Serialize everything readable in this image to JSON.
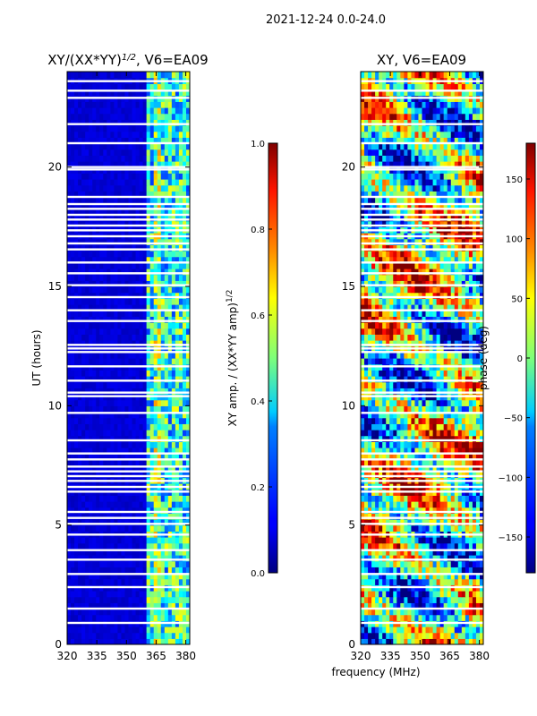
{
  "suptitle": "2021-12-24 0.0-24.0",
  "xlabel_shared": "frequency (MHz)",
  "colors": {
    "background_fill": "#00007f",
    "gap_color": "#ffffff"
  },
  "chart_data": [
    {
      "type": "heatmap",
      "title_main": "XY/(XX*YY)",
      "title_sup": "1/2",
      "title_tail": ", V6=EA09",
      "xlabel": "",
      "ylabel": "UT (hours)",
      "xlim": [
        320,
        382
      ],
      "ylim": [
        0,
        24
      ],
      "xticks": [
        320,
        335,
        350,
        365,
        380
      ],
      "yticks": [
        0,
        5,
        10,
        15,
        20
      ],
      "colormap": "jet",
      "gap_hours": [
        0.9,
        1.5,
        2.4,
        2.95,
        3.55,
        3.95,
        4.6,
        5.05,
        5.3,
        5.55,
        6.4,
        6.6,
        6.85,
        7.05,
        7.25,
        7.45,
        7.75,
        8.0,
        8.55,
        9.7,
        10.4,
        10.55,
        11.05,
        11.65,
        12.25,
        12.4,
        12.55,
        13.55,
        14.0,
        14.55,
        15.05,
        15.55,
        16.0,
        16.55,
        16.8,
        17.1,
        17.35,
        17.55,
        17.8,
        18.0,
        18.25,
        18.45,
        18.75,
        19.9,
        20.0,
        21.0,
        21.8,
        22.9,
        23.2,
        23.6
      ]
    },
    {
      "type": "heatmap",
      "title_main": "XY, V6=EA09",
      "xlabel": "frequency (MHz)",
      "ylabel": "",
      "xlim": [
        320,
        382
      ],
      "ylim": [
        0,
        24
      ],
      "xticks": [
        320,
        335,
        350,
        365,
        380
      ],
      "yticks": [
        0,
        5,
        10,
        15,
        20
      ],
      "colormap": "jet",
      "gap_hours": [
        0.9,
        1.5,
        2.4,
        2.95,
        3.55,
        3.95,
        4.6,
        5.05,
        5.3,
        5.55,
        6.4,
        6.6,
        6.85,
        7.05,
        7.25,
        7.45,
        7.75,
        8.0,
        8.55,
        9.7,
        10.4,
        10.55,
        11.05,
        11.65,
        12.25,
        12.4,
        12.55,
        13.55,
        14.0,
        14.55,
        15.05,
        15.55,
        16.0,
        16.55,
        16.8,
        17.1,
        17.35,
        17.55,
        17.8,
        18.0,
        18.25,
        18.45,
        18.75,
        19.9,
        20.0,
        21.0,
        21.8,
        22.9,
        23.2,
        23.6
      ]
    },
    {
      "type": "colorbar",
      "label_main": "XY amp. / (XX*YY amp)",
      "label_sup": "1/2",
      "range": [
        0.0,
        1.0
      ],
      "ticks": [
        "0.0",
        "0.2",
        "0.4",
        "0.6",
        "0.8",
        "1.0"
      ],
      "tick_values": [
        0.0,
        0.2,
        0.4,
        0.6,
        0.8,
        1.0
      ]
    },
    {
      "type": "colorbar",
      "label": "phase (deg)",
      "range": [
        -180,
        180
      ],
      "ticks": [
        "−150",
        "−100",
        "−50",
        "0",
        "50",
        "100",
        "150"
      ],
      "tick_values": [
        -150,
        -100,
        -50,
        0,
        50,
        100,
        150
      ]
    }
  ]
}
